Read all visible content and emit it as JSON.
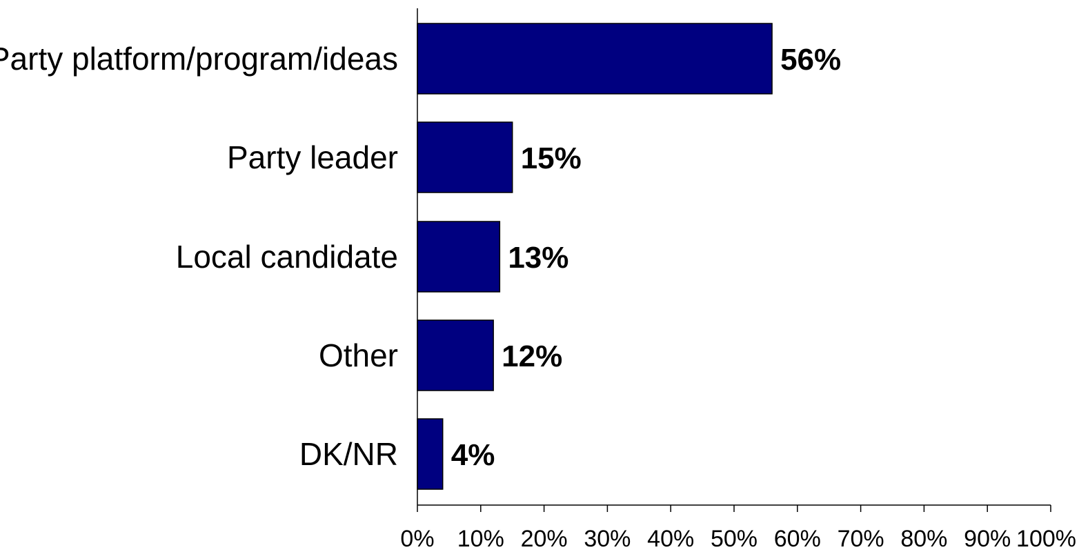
{
  "chart_data": {
    "type": "bar",
    "orientation": "horizontal",
    "categories": [
      "Party platform/program/ideas",
      "Party leader",
      "Local candidate",
      "Other",
      "DK/NR"
    ],
    "values": [
      56,
      15,
      13,
      12,
      4
    ],
    "value_labels": [
      "56%",
      "15%",
      "13%",
      "12%",
      "4%"
    ],
    "xlim": [
      0,
      100
    ],
    "x_ticks": [
      0,
      10,
      20,
      30,
      40,
      50,
      60,
      70,
      80,
      90,
      100
    ],
    "x_tick_labels": [
      "0%",
      "10%",
      "20%",
      "30%",
      "40%",
      "50%",
      "60%",
      "70%",
      "80%",
      "90%",
      "100%"
    ],
    "grid": false,
    "legend": "none",
    "bar_color": "#000080",
    "title": "",
    "xlabel": "",
    "ylabel": ""
  }
}
